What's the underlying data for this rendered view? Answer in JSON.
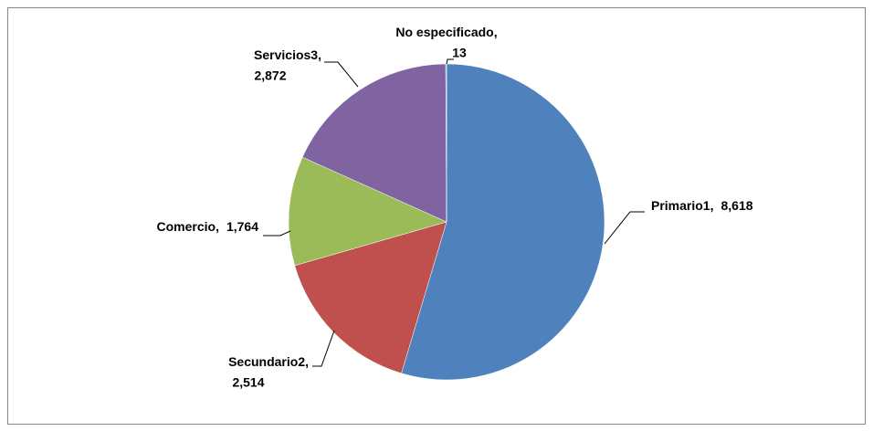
{
  "chart_data": {
    "type": "pie",
    "categories": [
      "Primario1",
      "Secundario2",
      "Comercio",
      "Servicios3",
      "No especificado"
    ],
    "values": [
      8618,
      2514,
      1764,
      2872,
      13
    ],
    "value_labels": [
      "8,618",
      "2,514",
      "1,764",
      "2,872",
      "13"
    ],
    "label_separator": ",",
    "colors": [
      "#4f81bd",
      "#c0504d",
      "#9bbb59",
      "#8064a2",
      "#4bacc6"
    ]
  }
}
